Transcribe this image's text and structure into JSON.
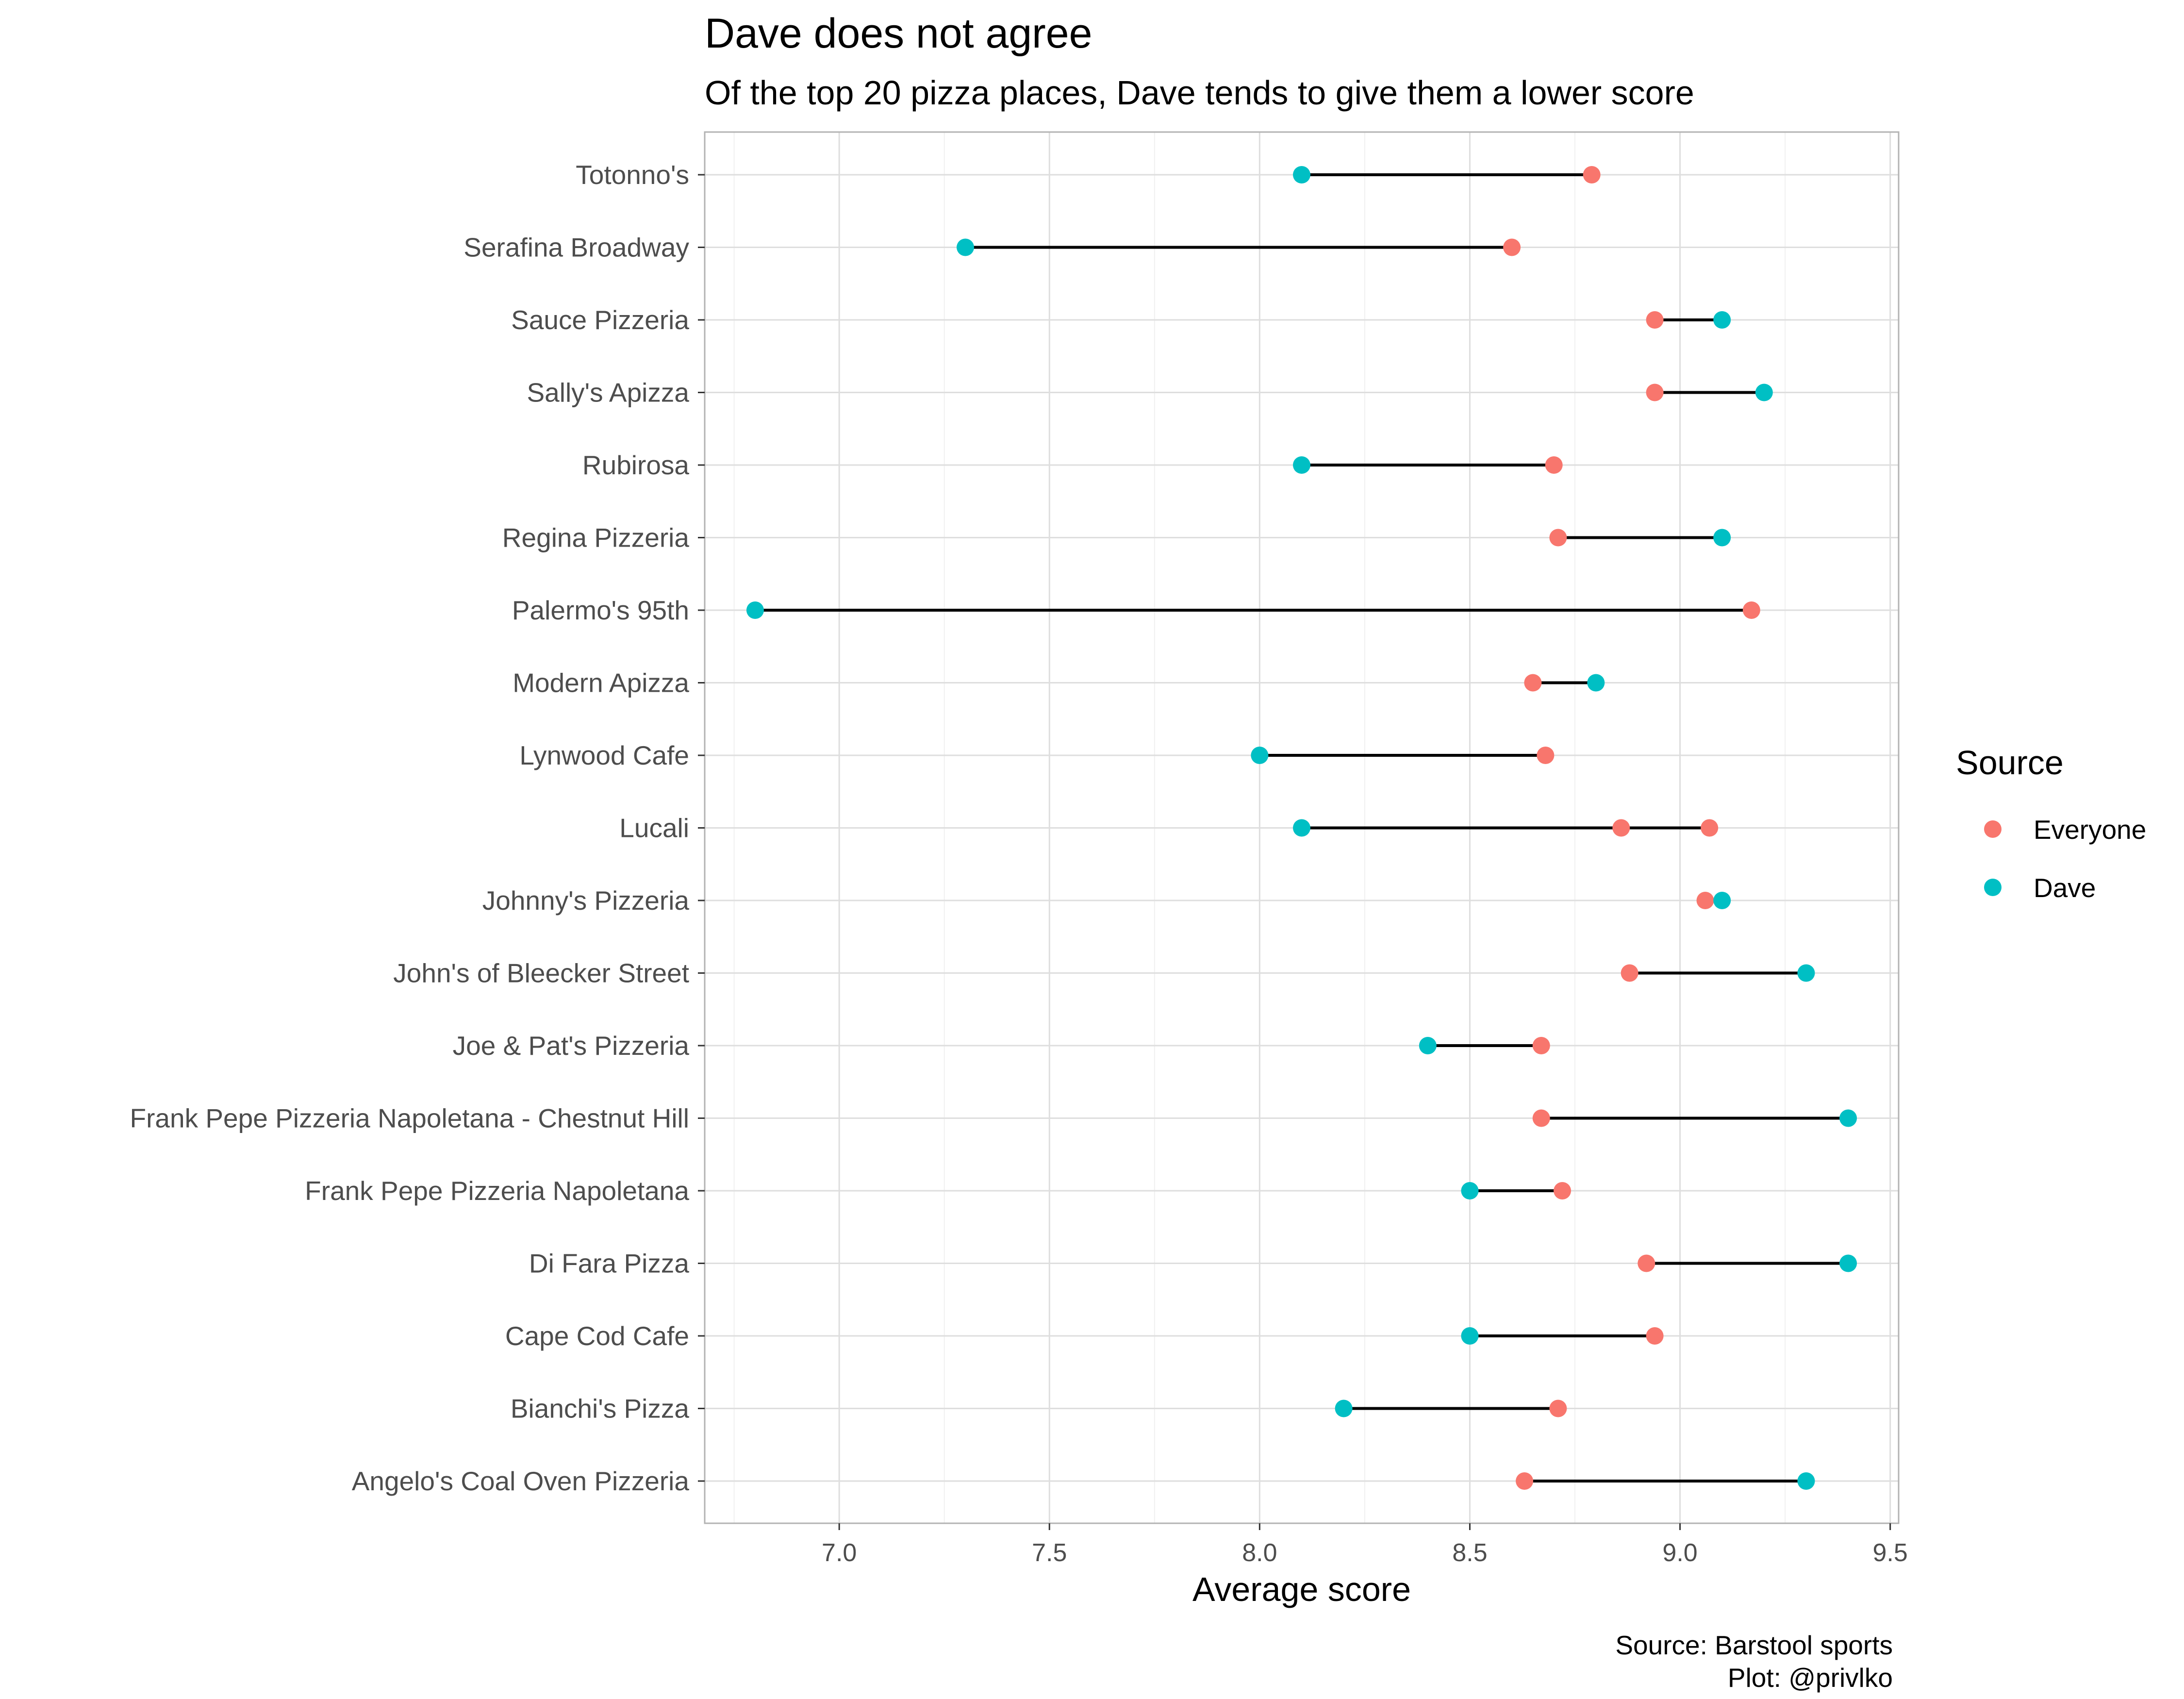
{
  "chart_data": {
    "type": "dumbbell",
    "title": "Dave does not agree",
    "subtitle": "Of the top 20 pizza places, Dave tends to give them a lower score",
    "xlabel": "Average score",
    "ylabel": "",
    "xlim": [
      6.68,
      9.52
    ],
    "x_ticks": [
      "7.0",
      "7.5",
      "8.0",
      "8.5",
      "9.0",
      "9.5"
    ],
    "grid": true,
    "legend": {
      "title": "Source",
      "position": "right",
      "entries": [
        {
          "name": "Everyone",
          "color": "#F8766D"
        },
        {
          "name": "Dave",
          "color": "#00BFC4"
        }
      ]
    },
    "caption": [
      "Source: Barstool sports",
      "Plot: @privlko"
    ],
    "categories": [
      "Totonno's",
      "Serafina Broadway",
      "Sauce Pizzeria",
      "Sally's Apizza",
      "Rubirosa",
      "Regina Pizzeria",
      "Palermo's 95th",
      "Modern Apizza",
      "Lynwood Cafe",
      "Lucali",
      "Johnny's Pizzeria",
      "John's of Bleecker Street",
      "Joe & Pat's Pizzeria",
      "Frank Pepe Pizzeria Napoletana - Chestnut Hill",
      "Frank Pepe Pizzeria Napoletana",
      "Di Fara Pizza",
      "Cape Cod Cafe",
      "Bianchi's Pizza",
      "Angelo's Coal Oven Pizzeria"
    ],
    "series": [
      {
        "name": "Everyone",
        "values": [
          [
            8.79
          ],
          [
            8.6
          ],
          [
            8.94
          ],
          [
            8.94
          ],
          [
            8.7
          ],
          [
            8.71
          ],
          [
            9.17
          ],
          [
            8.65
          ],
          [
            8.68
          ],
          [
            8.86,
            9.07
          ],
          [
            9.06
          ],
          [
            8.88
          ],
          [
            8.67
          ],
          [
            8.67
          ],
          [
            8.72
          ],
          [
            8.92
          ],
          [
            8.94
          ],
          [
            8.71
          ],
          [
            8.63
          ]
        ]
      },
      {
        "name": "Dave",
        "values": [
          [
            8.1
          ],
          [
            7.3
          ],
          [
            9.1
          ],
          [
            9.2
          ],
          [
            8.1
          ],
          [
            9.1
          ],
          [
            6.8
          ],
          [
            8.8
          ],
          [
            8.0
          ],
          [
            8.1
          ],
          [
            9.1
          ],
          [
            9.3
          ],
          [
            8.4
          ],
          [
            9.4
          ],
          [
            8.5
          ],
          [
            9.4
          ],
          [
            8.5
          ],
          [
            8.2
          ],
          [
            9.3
          ]
        ]
      }
    ]
  }
}
